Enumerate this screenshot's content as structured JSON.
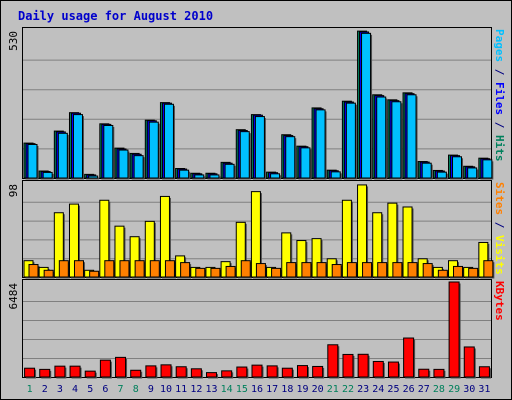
{
  "chart_data": {
    "type": "bar",
    "title": "Daily usage for August 2010",
    "categories": [
      "1",
      "2",
      "3",
      "4",
      "5",
      "6",
      "7",
      "8",
      "9",
      "10",
      "11",
      "12",
      "13",
      "14",
      "15",
      "16",
      "17",
      "18",
      "19",
      "20",
      "21",
      "22",
      "23",
      "24",
      "25",
      "26",
      "27",
      "28",
      "29",
      "30",
      "31"
    ],
    "weekend_days": [
      "1",
      "7",
      "8",
      "14",
      "15",
      "21",
      "22",
      "28",
      "29"
    ],
    "panels": [
      {
        "name": "hits-files-pages",
        "max_label": "530",
        "ymax": 530,
        "axis_label_parts": [
          {
            "text": "Pages",
            "color": "#00c0ff"
          },
          {
            "text": " / ",
            "color": "#000080"
          },
          {
            "text": "Files",
            "color": "#0000ff"
          },
          {
            "text": " / ",
            "color": "#000080"
          },
          {
            "text": "Hits",
            "color": "#00805c"
          }
        ],
        "series": [
          {
            "name": "Hits",
            "color": "#00805c",
            "values": [
              125,
              25,
              168,
              234,
              13,
              194,
              107,
              88,
              207,
              270,
              34,
              17,
              17,
              56,
              173,
              227,
              21,
              155,
              114,
              251,
              28,
              275,
              526,
              298,
              280,
              305,
              59,
              27,
              82,
              42,
              71
            ]
          },
          {
            "name": "Files",
            "color": "#0000ff",
            "values": [
              123,
              23,
              165,
              232,
              11,
              192,
              104,
              85,
              205,
              268,
              32,
              15,
              15,
              53,
              170,
              225,
              19,
              152,
              112,
              248,
              26,
              272,
              523,
              295,
              277,
              302,
              57,
              25,
              80,
              40,
              69
            ]
          },
          {
            "name": "Pages",
            "color": "#00c0ff",
            "values": [
              120,
              20,
              160,
              227,
              7,
              188,
              100,
              80,
              200,
              264,
              28,
              11,
              11,
              49,
              166,
              220,
              15,
              148,
              108,
              244,
              22,
              268,
              518,
              290,
              273,
              298,
              53,
              21,
              76,
              36,
              65
            ]
          }
        ]
      },
      {
        "name": "visits-sites",
        "max_label": "98",
        "ymax": 98,
        "axis_label_parts": [
          {
            "text": "Sites",
            "color": "#ff8000"
          },
          {
            "text": " / ",
            "color": "#000080"
          },
          {
            "text": "Visits",
            "color": "#ffff00"
          }
        ],
        "series": [
          {
            "name": "Visits",
            "color": "#ffff00",
            "values": [
              17,
              10,
              67,
              76,
              7,
              80,
              53,
              42,
              58,
              84,
              22,
              10,
              10,
              16,
              57,
              89,
              10,
              46,
              38,
              40,
              19,
              80,
              96,
              67,
              77,
              73,
              19,
              10,
              17,
              10,
              36
            ]
          },
          {
            "name": "Sites",
            "color": "#ff8000",
            "values": [
              13,
              7,
              17,
              17,
              6,
              17,
              17,
              17,
              17,
              17,
              15,
              9,
              9,
              11,
              17,
              14,
              9,
              15,
              15,
              15,
              13,
              15,
              15,
              15,
              15,
              15,
              14,
              7,
              11,
              9,
              17
            ]
          }
        ]
      },
      {
        "name": "kbytes",
        "max_label": "6484",
        "ymax": 6484,
        "axis_label_parts": [
          {
            "text": "KBytes",
            "color": "#ff0000"
          }
        ],
        "series": [
          {
            "name": "KBytes",
            "color": "#ff0000",
            "values": [
              600,
              520,
              740,
              740,
              400,
              1150,
              1340,
              460,
              760,
              830,
              700,
              560,
              300,
              420,
              680,
              810,
              760,
              600,
              780,
              720,
              2200,
              1540,
              1550,
              1060,
              1020,
              2660,
              530,
              520,
              6484,
              2050,
              700
            ]
          }
        ]
      }
    ]
  }
}
